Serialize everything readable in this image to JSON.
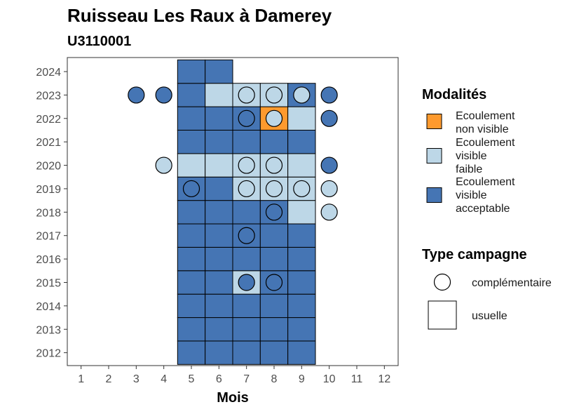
{
  "chart_data": {
    "type": "heatmap",
    "title": "Ruisseau Les Raux à Damerey",
    "subtitle": "U3110001",
    "xlabel": "Mois",
    "ylabel": "",
    "x_ticks": [
      1,
      2,
      3,
      4,
      5,
      6,
      7,
      8,
      9,
      10,
      11,
      12
    ],
    "y_ticks": [
      2012,
      2013,
      2014,
      2015,
      2016,
      2017,
      2018,
      2019,
      2020,
      2021,
      2022,
      2023,
      2024
    ],
    "xlim": [
      0.5,
      12.5
    ],
    "ylim": [
      2011.45,
      2024.6
    ],
    "colors": {
      "non_visible": "#FE9A2E",
      "faible": "#BDD7E7",
      "acceptable": "#4575B4"
    },
    "legend_modalites": {
      "title": "Modalités",
      "items": [
        {
          "key": "non_visible",
          "lines": [
            "Ecoulement",
            "non visible"
          ]
        },
        {
          "key": "faible",
          "lines": [
            "Ecoulement",
            "visible",
            "faible"
          ]
        },
        {
          "key": "acceptable",
          "lines": [
            "Ecoulement",
            "visible",
            "acceptable"
          ]
        }
      ]
    },
    "legend_type": {
      "title": "Type campagne",
      "items": [
        {
          "shape": "circle",
          "label": "complémentaire"
        },
        {
          "shape": "square",
          "label": "usuelle"
        }
      ]
    },
    "usuelle": [
      {
        "year": 2012,
        "month": 5,
        "value": "acceptable"
      },
      {
        "year": 2012,
        "month": 6,
        "value": "acceptable"
      },
      {
        "year": 2012,
        "month": 7,
        "value": "acceptable"
      },
      {
        "year": 2012,
        "month": 8,
        "value": "acceptable"
      },
      {
        "year": 2012,
        "month": 9,
        "value": "acceptable"
      },
      {
        "year": 2013,
        "month": 5,
        "value": "acceptable"
      },
      {
        "year": 2013,
        "month": 6,
        "value": "acceptable"
      },
      {
        "year": 2013,
        "month": 7,
        "value": "acceptable"
      },
      {
        "year": 2013,
        "month": 8,
        "value": "acceptable"
      },
      {
        "year": 2013,
        "month": 9,
        "value": "acceptable"
      },
      {
        "year": 2014,
        "month": 5,
        "value": "acceptable"
      },
      {
        "year": 2014,
        "month": 6,
        "value": "acceptable"
      },
      {
        "year": 2014,
        "month": 7,
        "value": "acceptable"
      },
      {
        "year": 2014,
        "month": 8,
        "value": "acceptable"
      },
      {
        "year": 2014,
        "month": 9,
        "value": "acceptable"
      },
      {
        "year": 2015,
        "month": 5,
        "value": "acceptable"
      },
      {
        "year": 2015,
        "month": 6,
        "value": "acceptable"
      },
      {
        "year": 2015,
        "month": 7,
        "value": "faible"
      },
      {
        "year": 2015,
        "month": 8,
        "value": "acceptable"
      },
      {
        "year": 2015,
        "month": 9,
        "value": "acceptable"
      },
      {
        "year": 2016,
        "month": 5,
        "value": "acceptable"
      },
      {
        "year": 2016,
        "month": 6,
        "value": "acceptable"
      },
      {
        "year": 2016,
        "month": 7,
        "value": "acceptable"
      },
      {
        "year": 2016,
        "month": 8,
        "value": "acceptable"
      },
      {
        "year": 2016,
        "month": 9,
        "value": "acceptable"
      },
      {
        "year": 2017,
        "month": 5,
        "value": "acceptable"
      },
      {
        "year": 2017,
        "month": 6,
        "value": "acceptable"
      },
      {
        "year": 2017,
        "month": 7,
        "value": "acceptable"
      },
      {
        "year": 2017,
        "month": 8,
        "value": "acceptable"
      },
      {
        "year": 2017,
        "month": 9,
        "value": "acceptable"
      },
      {
        "year": 2018,
        "month": 5,
        "value": "acceptable"
      },
      {
        "year": 2018,
        "month": 6,
        "value": "acceptable"
      },
      {
        "year": 2018,
        "month": 7,
        "value": "acceptable"
      },
      {
        "year": 2018,
        "month": 8,
        "value": "acceptable"
      },
      {
        "year": 2018,
        "month": 9,
        "value": "faible"
      },
      {
        "year": 2019,
        "month": 5,
        "value": "acceptable"
      },
      {
        "year": 2019,
        "month": 6,
        "value": "acceptable"
      },
      {
        "year": 2019,
        "month": 7,
        "value": "faible"
      },
      {
        "year": 2019,
        "month": 8,
        "value": "faible"
      },
      {
        "year": 2019,
        "month": 9,
        "value": "faible"
      },
      {
        "year": 2020,
        "month": 5,
        "value": "faible"
      },
      {
        "year": 2020,
        "month": 6,
        "value": "faible"
      },
      {
        "year": 2020,
        "month": 7,
        "value": "faible"
      },
      {
        "year": 2020,
        "month": 8,
        "value": "faible"
      },
      {
        "year": 2020,
        "month": 9,
        "value": "faible"
      },
      {
        "year": 2021,
        "month": 5,
        "value": "acceptable"
      },
      {
        "year": 2021,
        "month": 6,
        "value": "acceptable"
      },
      {
        "year": 2021,
        "month": 7,
        "value": "acceptable"
      },
      {
        "year": 2021,
        "month": 8,
        "value": "acceptable"
      },
      {
        "year": 2021,
        "month": 9,
        "value": "acceptable"
      },
      {
        "year": 2022,
        "month": 5,
        "value": "acceptable"
      },
      {
        "year": 2022,
        "month": 6,
        "value": "acceptable"
      },
      {
        "year": 2022,
        "month": 7,
        "value": "acceptable"
      },
      {
        "year": 2022,
        "month": 8,
        "value": "non_visible"
      },
      {
        "year": 2022,
        "month": 9,
        "value": "faible"
      },
      {
        "year": 2023,
        "month": 5,
        "value": "acceptable"
      },
      {
        "year": 2023,
        "month": 6,
        "value": "faible"
      },
      {
        "year": 2023,
        "month": 7,
        "value": "faible"
      },
      {
        "year": 2023,
        "month": 8,
        "value": "faible"
      },
      {
        "year": 2023,
        "month": 9,
        "value": "acceptable"
      },
      {
        "year": 2024,
        "month": 5,
        "value": "acceptable"
      },
      {
        "year": 2024,
        "month": 6,
        "value": "acceptable"
      }
    ],
    "complementaire": [
      {
        "year": 2015,
        "month": 7,
        "value": "acceptable"
      },
      {
        "year": 2015,
        "month": 8,
        "value": "acceptable"
      },
      {
        "year": 2017,
        "month": 7,
        "value": "acceptable"
      },
      {
        "year": 2018,
        "month": 8,
        "value": "acceptable"
      },
      {
        "year": 2018,
        "month": 10,
        "value": "faible"
      },
      {
        "year": 2019,
        "month": 5,
        "value": "acceptable"
      },
      {
        "year": 2019,
        "month": 7,
        "value": "faible"
      },
      {
        "year": 2019,
        "month": 8,
        "value": "faible"
      },
      {
        "year": 2019,
        "month": 9,
        "value": "faible"
      },
      {
        "year": 2019,
        "month": 10,
        "value": "faible"
      },
      {
        "year": 2020,
        "month": 4,
        "value": "faible"
      },
      {
        "year": 2020,
        "month": 7,
        "value": "faible"
      },
      {
        "year": 2020,
        "month": 8,
        "value": "faible"
      },
      {
        "year": 2020,
        "month": 10,
        "value": "acceptable"
      },
      {
        "year": 2022,
        "month": 7,
        "value": "acceptable"
      },
      {
        "year": 2022,
        "month": 8,
        "value": "faible"
      },
      {
        "year": 2022,
        "month": 10,
        "value": "acceptable"
      },
      {
        "year": 2023,
        "month": 3,
        "value": "acceptable"
      },
      {
        "year": 2023,
        "month": 4,
        "value": "acceptable"
      },
      {
        "year": 2023,
        "month": 7,
        "value": "faible"
      },
      {
        "year": 2023,
        "month": 8,
        "value": "faible"
      },
      {
        "year": 2023,
        "month": 9,
        "value": "faible"
      },
      {
        "year": 2023,
        "month": 10,
        "value": "acceptable"
      }
    ]
  }
}
